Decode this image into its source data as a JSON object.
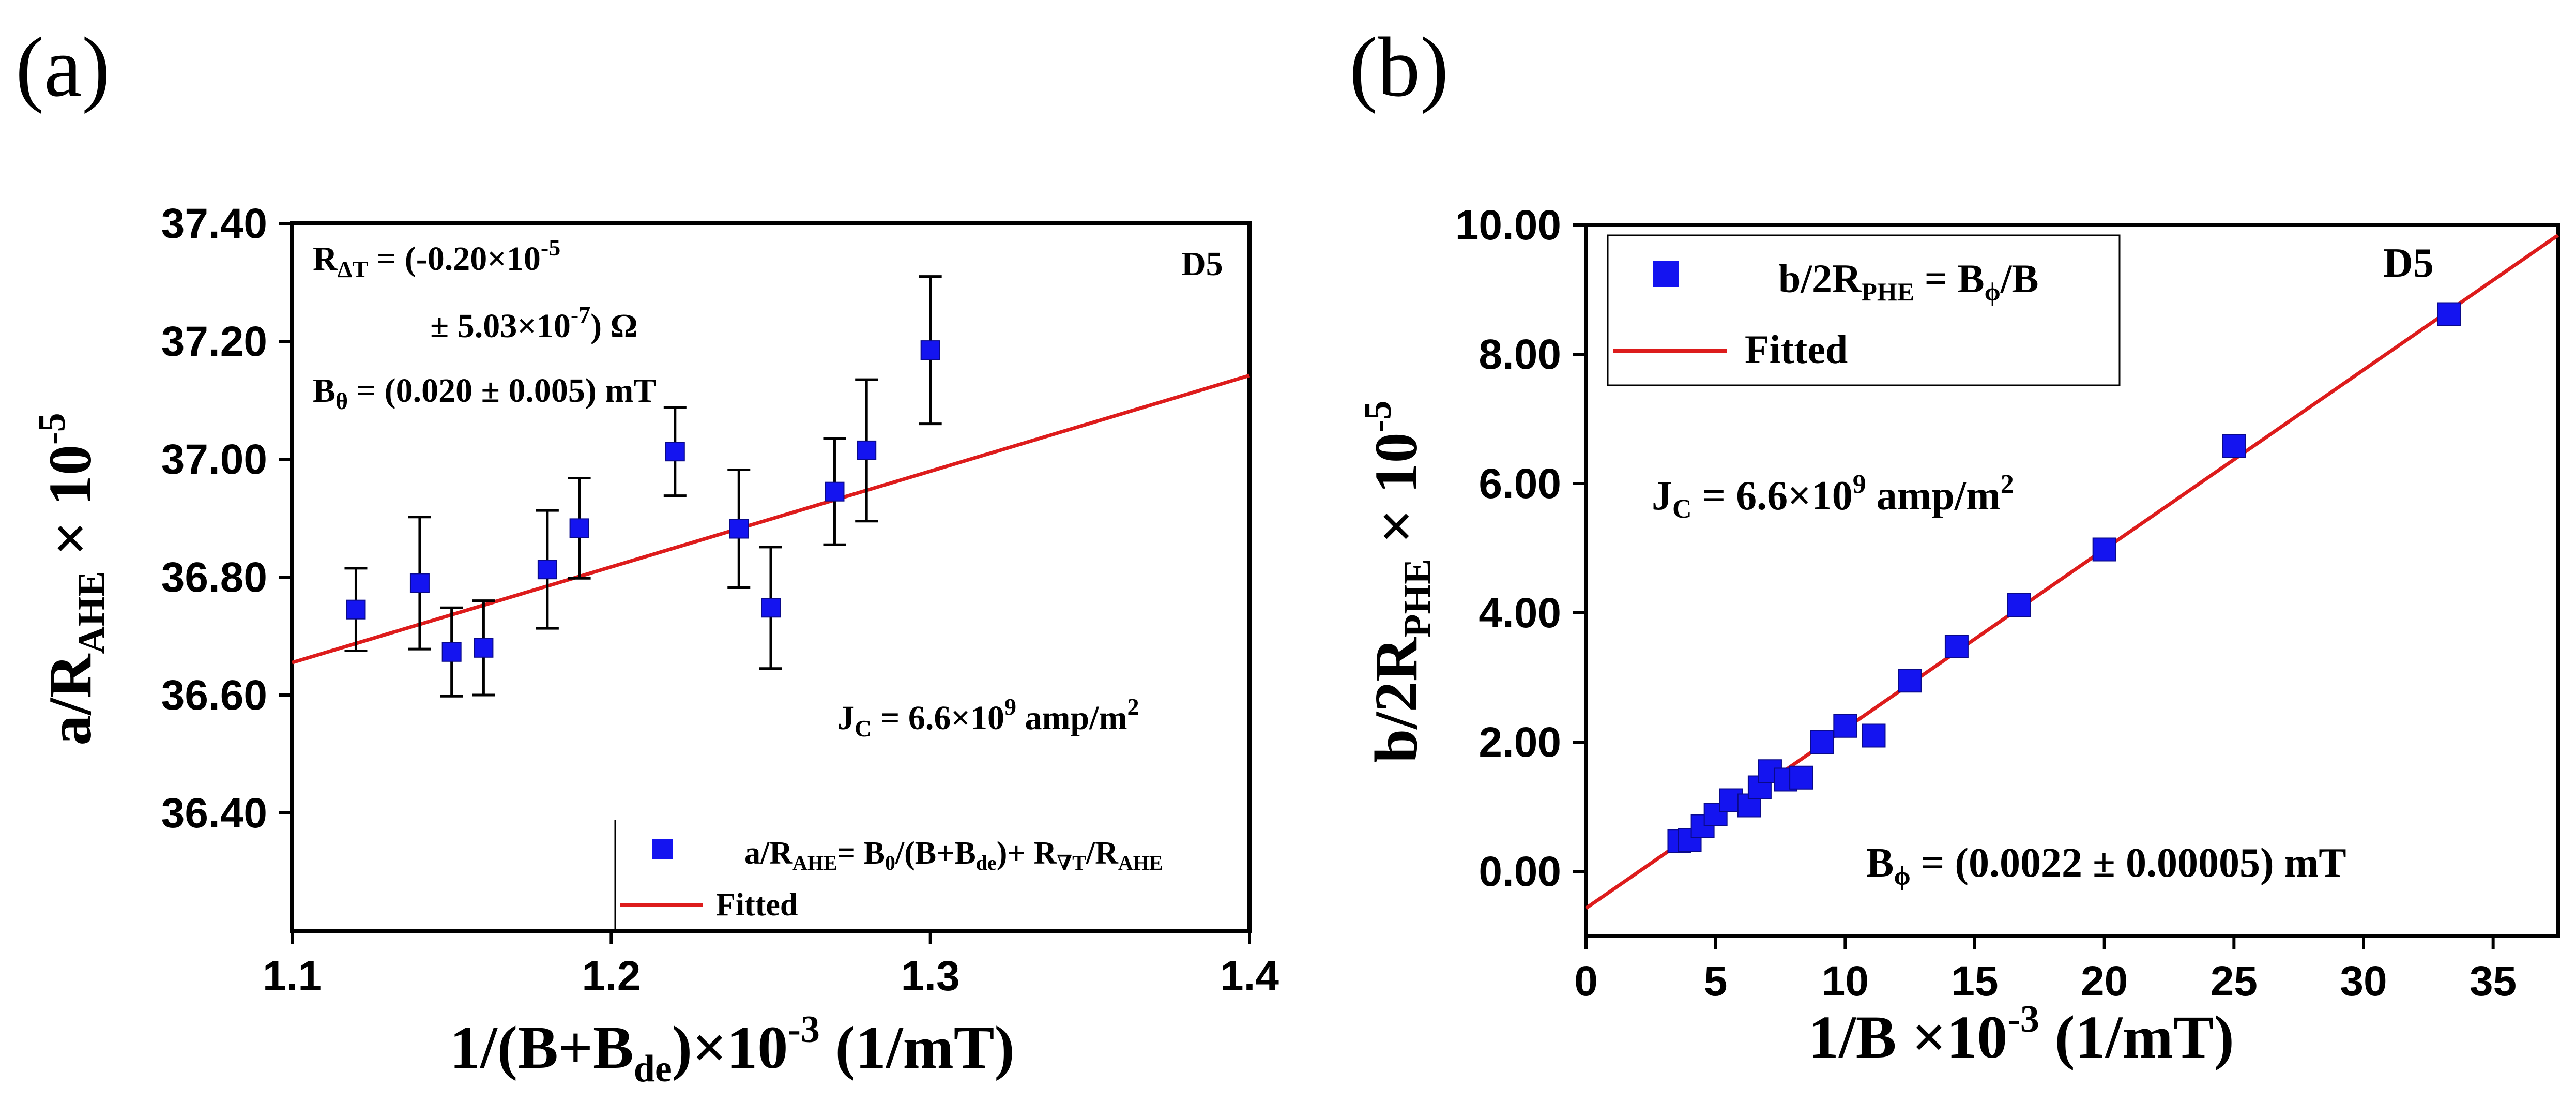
{
  "colors": {
    "marker": "#1414f0",
    "fit": "#dd1c1c",
    "axis": "#000000"
  },
  "chart_data": [
    {
      "id": "a",
      "type": "scatter",
      "panel_label": "(a)",
      "dataset_label": "D5",
      "xlabel": "1/(B+Bde)×10-3 (1/mT)",
      "ylabel": "a/RAHE × 10-5",
      "xlim": [
        1.1,
        1.4
      ],
      "ylim": [
        36.2,
        37.4
      ],
      "xticks": [
        1.1,
        1.2,
        1.3,
        1.4
      ],
      "xtick_labels": [
        "1.1",
        "1.2",
        "1.3",
        "1.4"
      ],
      "yticks": [
        36.4,
        36.6,
        36.8,
        37.0,
        37.2,
        37.4
      ],
      "ytick_labels": [
        "36.40",
        "36.60",
        "36.80",
        "37.00",
        "37.20",
        "37.40"
      ],
      "series": [
        {
          "name": "a/RAHE= B0/(B+Bde)+ R∇T/RAHE",
          "x": [
            1.12,
            1.14,
            1.15,
            1.16,
            1.18,
            1.19,
            1.22,
            1.24,
            1.25,
            1.27,
            1.28,
            1.3
          ],
          "y": [
            36.745,
            36.79,
            36.673,
            36.68,
            36.813,
            36.883,
            37.013,
            36.882,
            36.748,
            36.945,
            37.015,
            37.185
          ],
          "yerr": [
            0.07,
            0.112,
            0.075,
            0.08,
            0.1,
            0.085,
            0.075,
            0.1,
            0.103,
            0.09,
            0.12,
            0.125
          ]
        }
      ],
      "fit": {
        "name": "Fitted",
        "x": [
          1.1,
          1.4
        ],
        "y": [
          36.655,
          37.142
        ]
      },
      "annotations": [
        "RΔT = (-0.20×10-5",
        "± 5.03×10-7) Ω",
        "Bθ = (0.020 ± 0.005) mT",
        "JC = 6.6×109 amp/m2"
      ]
    },
    {
      "id": "b",
      "type": "scatter",
      "panel_label": "(b)",
      "dataset_label": "D5",
      "xlabel": "1/B ×10-3 (1/mT)",
      "ylabel": "b/2RPHE × 10-5",
      "xlim": [
        0,
        37.5
      ],
      "ylim": [
        -1,
        10
      ],
      "xticks": [
        0,
        5,
        10,
        15,
        20,
        25,
        30,
        35
      ],
      "xtick_labels": [
        "0",
        "5",
        "10",
        "15",
        "20",
        "25",
        "30",
        "35"
      ],
      "yticks": [
        0,
        2,
        4,
        6,
        8,
        10
      ],
      "ytick_labels": [
        "0.00",
        "2.00",
        "4.00",
        "6.00",
        "8.00",
        "10.00"
      ],
      "series": [
        {
          "name": "b/2RPHE = Bϕ/B",
          "x": [
            3.6,
            4.0,
            4.5,
            5.0,
            5.6,
            6.3,
            6.7,
            7.1,
            7.7,
            8.3,
            9.1,
            10.0,
            11.1,
            12.5,
            14.3,
            16.7,
            20.0,
            25.0,
            33.3
          ],
          "y": [
            0.47,
            0.48,
            0.7,
            0.88,
            1.1,
            1.02,
            1.3,
            1.55,
            1.42,
            1.45,
            2.0,
            2.25,
            2.1,
            2.95,
            3.48,
            4.12,
            4.98,
            6.58,
            8.62
          ]
        }
      ],
      "fit": {
        "name": "Fitted",
        "x": [
          0,
          37.5
        ],
        "y": [
          -0.57,
          9.84
        ]
      },
      "annotations": [
        "JC = 6.6×109 amp/m2",
        "Bϕ = (0.0022 ± 0.00005) mT"
      ]
    }
  ]
}
